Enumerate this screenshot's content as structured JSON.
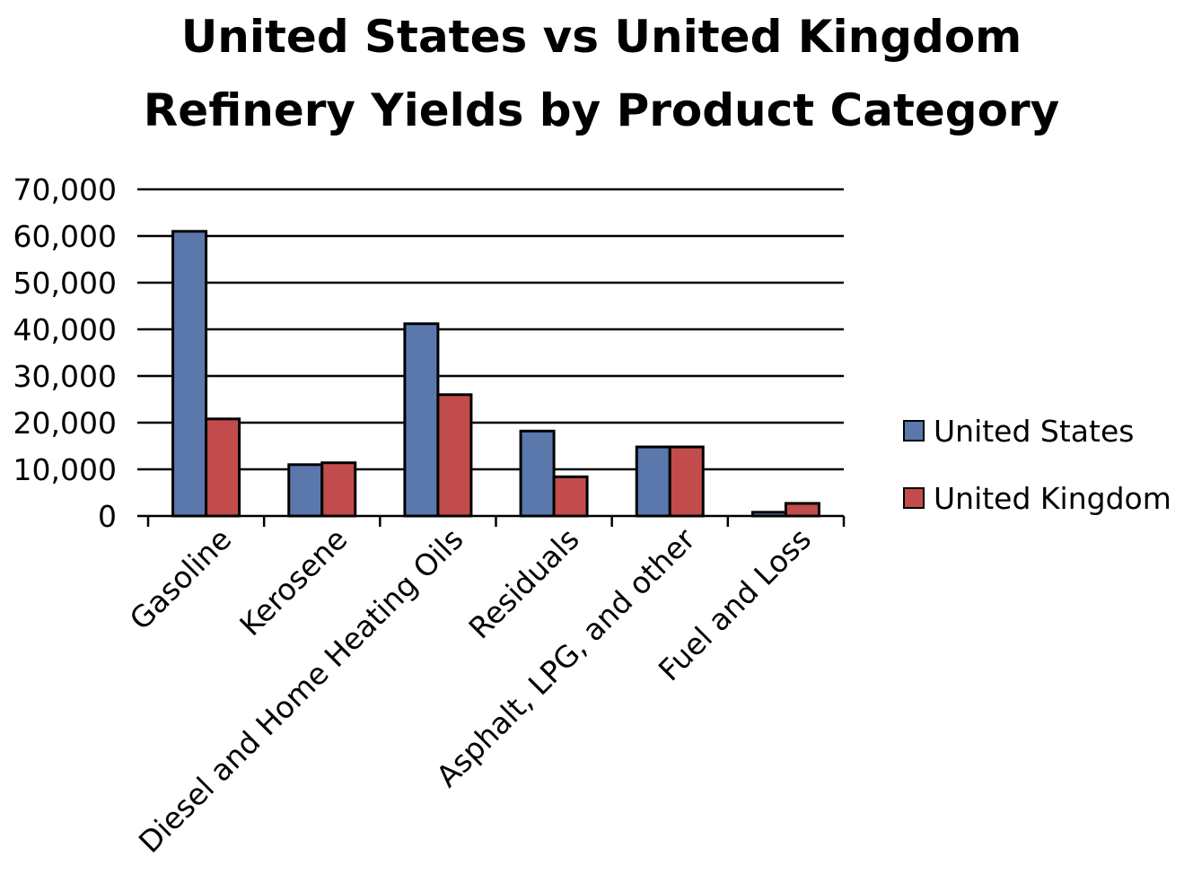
{
  "chart_data": {
    "type": "bar",
    "title": "United States vs United Kingdom Refinery Yields by Product Category",
    "title_lines": [
      "United States vs United Kingdom",
      "Refinery Yields by Product Category"
    ],
    "categories": [
      "Gasoline",
      "Kerosene",
      "Diesel and Home Heating Oils",
      "Residuals",
      "Asphalt, LPG, and other",
      "Fuel and Loss"
    ],
    "series": [
      {
        "name": "United States",
        "color": "#5b78ad",
        "values": [
          61000,
          11000,
          41200,
          18200,
          14800,
          800
        ]
      },
      {
        "name": "United Kingdom",
        "color": "#c24c4c",
        "values": [
          20800,
          11400,
          26000,
          8400,
          14800,
          2700
        ]
      }
    ],
    "y_ticks": [
      "0",
      "10,000",
      "20,000",
      "30,000",
      "40,000",
      "50,000",
      "60,000",
      "70,000"
    ],
    "ylim": [
      0,
      70000
    ],
    "y_step": 10000,
    "xlabel": "",
    "ylabel": "",
    "grid": true,
    "legend_position": "right"
  }
}
